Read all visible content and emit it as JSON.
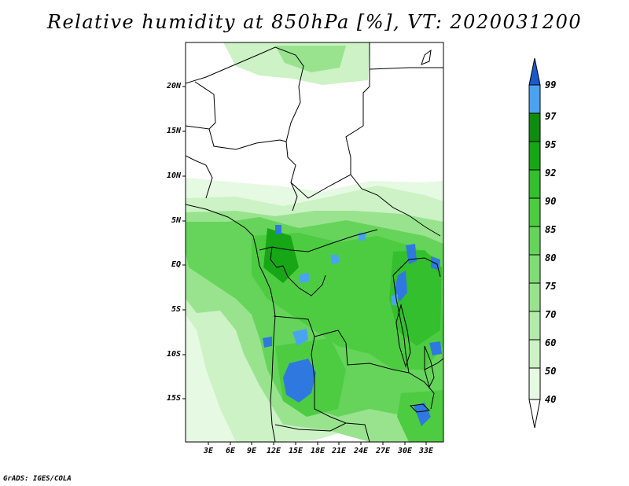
{
  "title": "Relative humidity at 850hPa [%], VT: 2020031200",
  "credit": "GrADS: IGES/COLA",
  "map": {
    "lat_labels": [
      "20N",
      "15N",
      "10N",
      "5N",
      "EQ",
      "5S",
      "10S",
      "15S"
    ],
    "lon_labels": [
      "3E",
      "6E",
      "9E",
      "12E",
      "15E",
      "18E",
      "21E",
      "24E",
      "27E",
      "30E",
      "33E"
    ]
  },
  "colorbar": {
    "levels": [
      "40",
      "50",
      "60",
      "70",
      "75",
      "80",
      "85",
      "90",
      "92",
      "95",
      "97",
      "99"
    ],
    "colors": [
      "#ffffff",
      "#e6f9e2",
      "#ccf2c6",
      "#b3ebab",
      "#99e38f",
      "#80dc75",
      "#66d45b",
      "#4dcc42",
      "#33bf2e",
      "#16a616",
      "#0f8c0f",
      "#4aa3f0",
      "#2f78e0",
      "#1a5acc"
    ]
  },
  "colors": {
    "accent_blue": "#2f78e0",
    "ocean": "#ffffff",
    "boundary": "#000000"
  }
}
